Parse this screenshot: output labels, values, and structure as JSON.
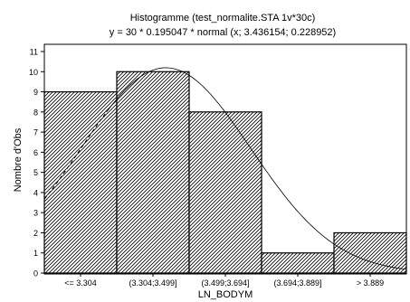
{
  "chart_data": {
    "type": "bar",
    "title": "Histogramme (test_normalite.STA 1v*30c)",
    "subtitle": "y = 30 * 0.195047 * normal (x; 3.436154; 0.228952)",
    "xlabel": "LN_BODYM",
    "ylabel": "Nombre d'Obs",
    "categories": [
      "<= 3.304",
      "(3.304;3.499]",
      "(3.499;3.694]",
      "(3.694;3.889]",
      "> 3.889"
    ],
    "values": [
      9,
      10,
      8,
      1,
      2
    ],
    "ylim": [
      0,
      11
    ],
    "yticks": [
      "0",
      "1",
      "2",
      "3",
      "4",
      "5",
      "6",
      "7",
      "8",
      "9",
      "10",
      "11"
    ],
    "grid": false,
    "bar_fill": "diagonal-hatch",
    "overlay_curve": {
      "type": "normal",
      "n": 30,
      "bin_width": 0.195047,
      "mean": 3.436154,
      "sd": 0.228952,
      "style": "solid, dashed beyond first bin center"
    },
    "colors": {
      "bar_fill": "#ffffff",
      "bar_hatch": "#000000",
      "curve": "#000000"
    }
  }
}
